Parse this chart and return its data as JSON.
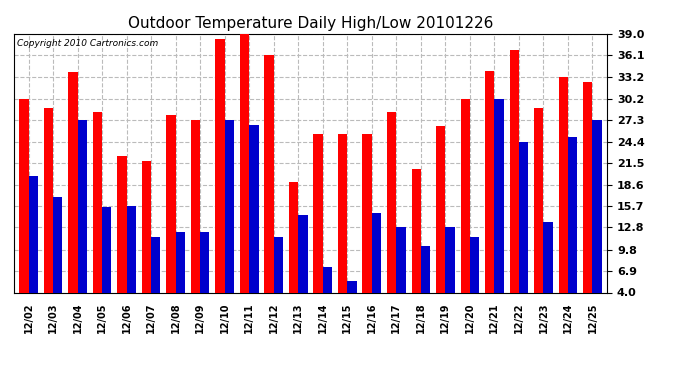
{
  "title": "Outdoor Temperature Daily High/Low 20101226",
  "copyright": "Copyright 2010 Cartronics.com",
  "categories": [
    "12/02",
    "12/03",
    "12/04",
    "12/05",
    "12/06",
    "12/07",
    "12/08",
    "12/09",
    "12/10",
    "12/11",
    "12/12",
    "12/13",
    "12/14",
    "12/15",
    "12/16",
    "12/17",
    "12/18",
    "12/19",
    "12/20",
    "12/21",
    "12/22",
    "12/23",
    "12/24",
    "12/25"
  ],
  "highs": [
    30.2,
    28.9,
    33.8,
    28.4,
    22.5,
    21.8,
    28.0,
    27.3,
    38.3,
    39.0,
    36.1,
    19.0,
    25.5,
    25.5,
    25.5,
    28.4,
    20.7,
    26.5,
    30.2,
    34.0,
    36.8,
    29.0,
    33.2,
    32.5
  ],
  "lows": [
    19.8,
    16.9,
    27.3,
    15.5,
    15.7,
    11.5,
    12.2,
    12.2,
    27.3,
    26.6,
    11.5,
    14.5,
    7.5,
    5.5,
    14.7,
    12.8,
    10.3,
    12.9,
    11.5,
    30.2,
    24.4,
    13.5,
    25.0,
    27.3
  ],
  "y_ticks": [
    4.0,
    6.9,
    9.8,
    12.8,
    15.7,
    18.6,
    21.5,
    24.4,
    27.3,
    30.2,
    33.2,
    36.1,
    39.0
  ],
  "ylim_min": 4.0,
  "ylim_max": 39.0,
  "high_color": "#ff0000",
  "low_color": "#0000cc",
  "bg_color": "#ffffff",
  "grid_color": "#bbbbbb",
  "title_fontsize": 11,
  "bar_width": 0.38,
  "figwidth": 6.9,
  "figheight": 3.75,
  "dpi": 100
}
